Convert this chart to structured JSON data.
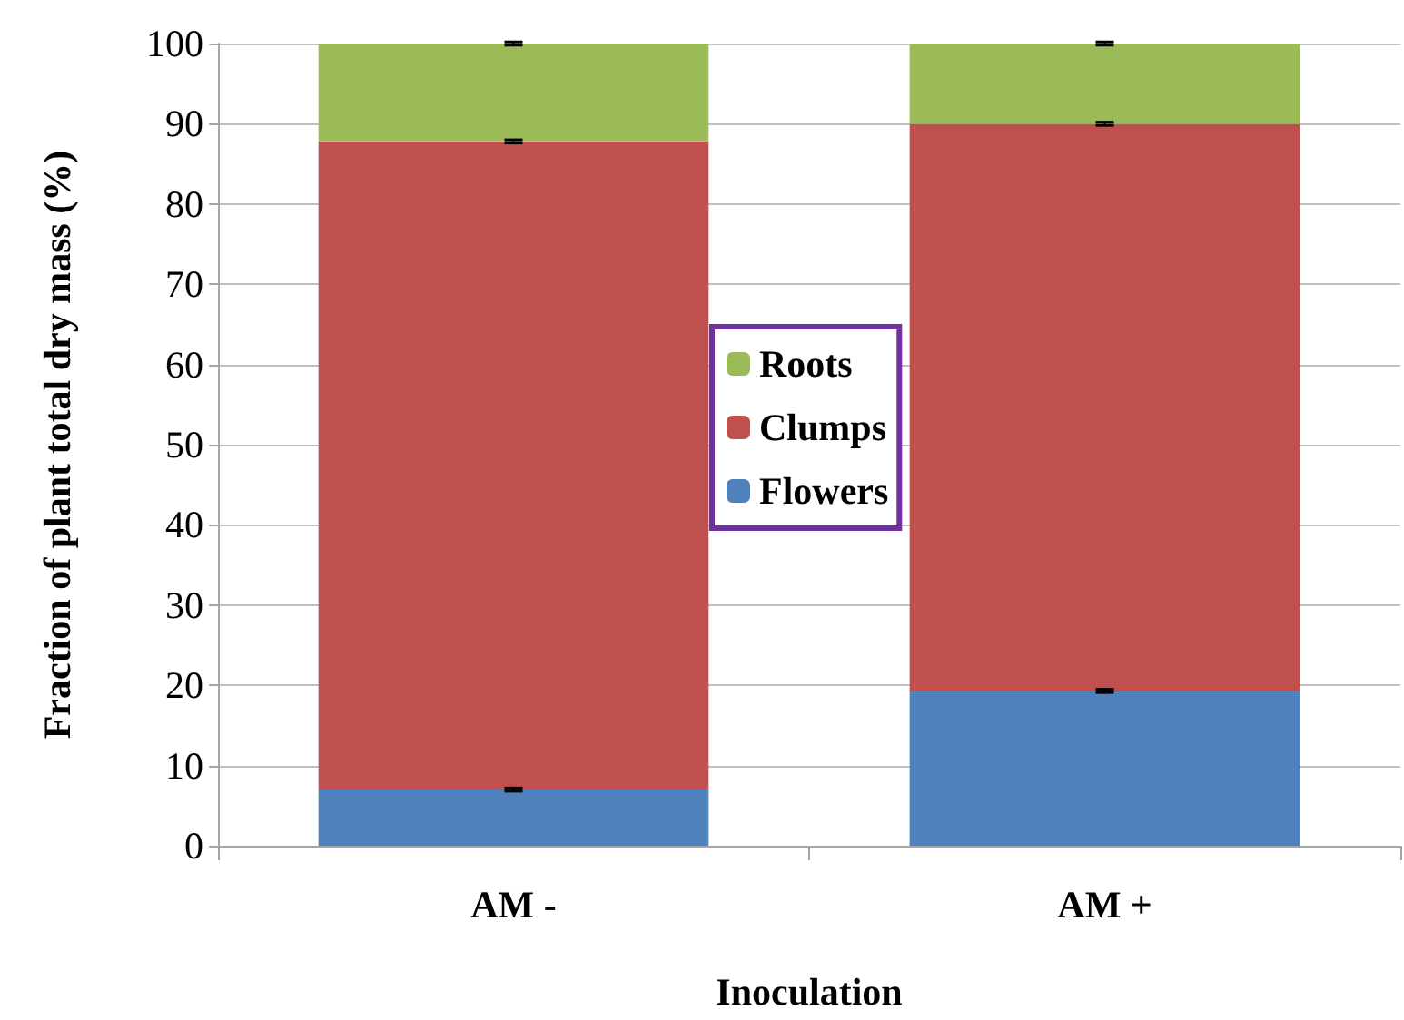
{
  "chart_data": {
    "type": "bar",
    "stacked": true,
    "xlabel": "Inoculation",
    "ylabel": "Fraction of plant total dry mass (%)",
    "categories": [
      "AM -",
      "AM +"
    ],
    "series": [
      {
        "name": "Flowers",
        "color": "#4f81bd",
        "values": [
          7.0,
          19.3
        ],
        "errors": [
          0.2,
          0.2
        ]
      },
      {
        "name": "Clumps",
        "color": "#c0504d",
        "values": [
          80.8,
          70.7
        ],
        "errors": [
          0.2,
          0.2
        ]
      },
      {
        "name": "Roots",
        "color": "#9bbb59",
        "values": [
          12.2,
          10.0
        ],
        "errors": [
          0.2,
          0.2
        ]
      }
    ],
    "ylim": [
      0,
      100
    ],
    "yticks": [
      0,
      10,
      20,
      30,
      40,
      50,
      60,
      70,
      80,
      90,
      100
    ],
    "grid": "y",
    "legend": "center"
  }
}
